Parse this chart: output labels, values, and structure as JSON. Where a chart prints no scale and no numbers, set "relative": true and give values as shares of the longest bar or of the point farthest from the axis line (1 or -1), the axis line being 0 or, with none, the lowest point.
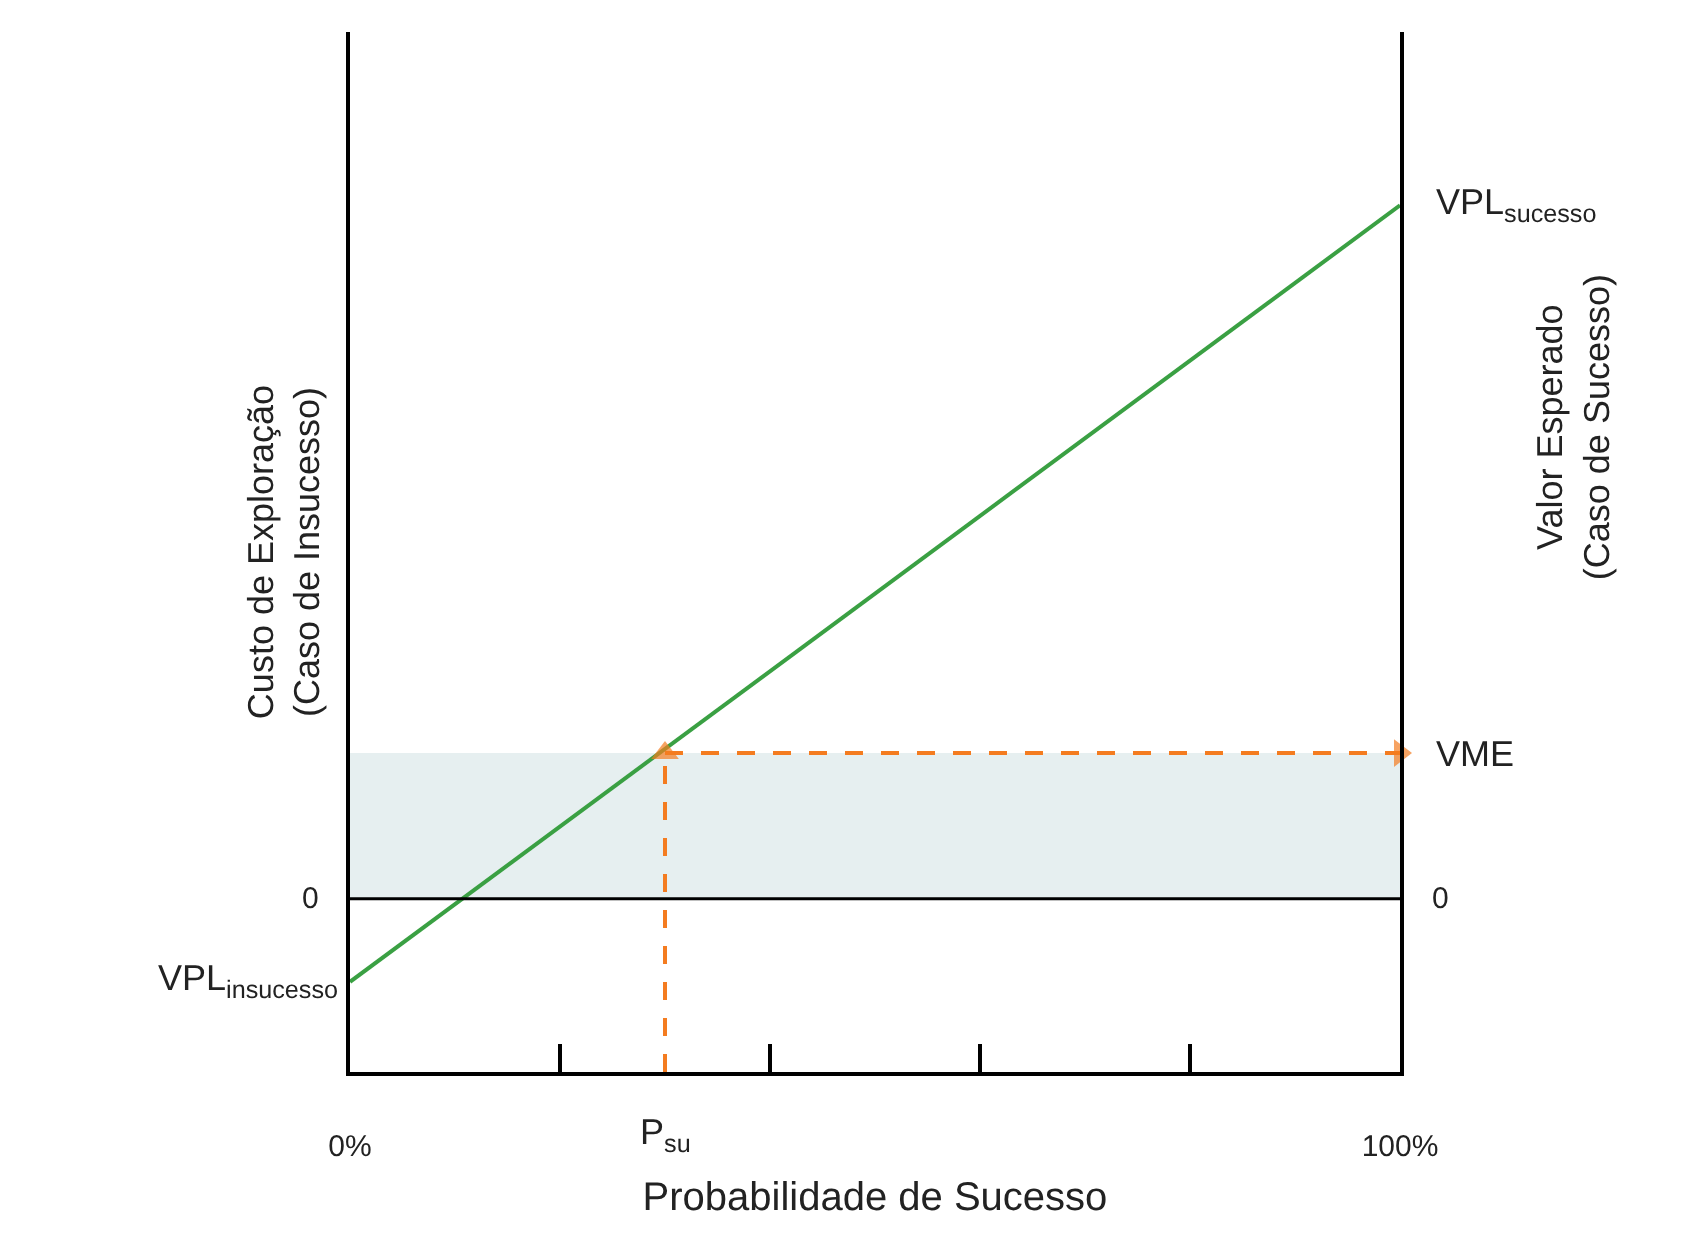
{
  "chart_data": {
    "type": "line",
    "relative": true,
    "xlabel": "Probabilidade de Sucesso",
    "ylabel": "Custo de Exploração\n(Caso de Insucesso)",
    "y2label": "Valor Esperado\n(Caso de Sucesso)",
    "xlim": [
      0,
      100
    ],
    "xticks": [
      {
        "value": 0,
        "label": "0%"
      },
      {
        "value": 20,
        "label": null
      },
      {
        "value": 40,
        "label": null
      },
      {
        "value": 60,
        "label": null
      },
      {
        "value": 80,
        "label": null
      },
      {
        "value": 100,
        "label": "100%"
      }
    ],
    "series": [
      {
        "x": [
          0,
          100
        ],
        "values": [
          -0.12,
          1
        ],
        "color": "#3aa043",
        "line_style": "solid"
      },
      {
        "x": [
          30,
          30
        ],
        "values": [
          -0.25,
          0.21
        ],
        "color": "#f47c20",
        "line_style": "dashed",
        "marker": "triangle"
      },
      {
        "x": [
          30,
          100
        ],
        "values": [
          0.21,
          0.21
        ],
        "color": "#f47c20",
        "line_style": "dashed",
        "marker": "triangle"
      }
    ],
    "ref_lines": [
      {
        "axis": "y",
        "value": 0,
        "label": "0",
        "color": "#000000"
      }
    ],
    "bands": [
      {
        "axis": "y",
        "from": 0,
        "to": 0.21,
        "color": "#e6eff0"
      }
    ],
    "annotations": [
      {
        "text": "VPL$_{insucesso}$",
        "x": 0,
        "y": -0.12
      },
      {
        "text": "VPL$_{sucesso}$",
        "x": 100,
        "y": 1
      },
      {
        "text": "VME",
        "x": 100,
        "y": 0.21
      },
      {
        "text": "P$_{su}$",
        "x": 30,
        "y": -0.25
      }
    ],
    "grid": false,
    "marker": "none"
  }
}
